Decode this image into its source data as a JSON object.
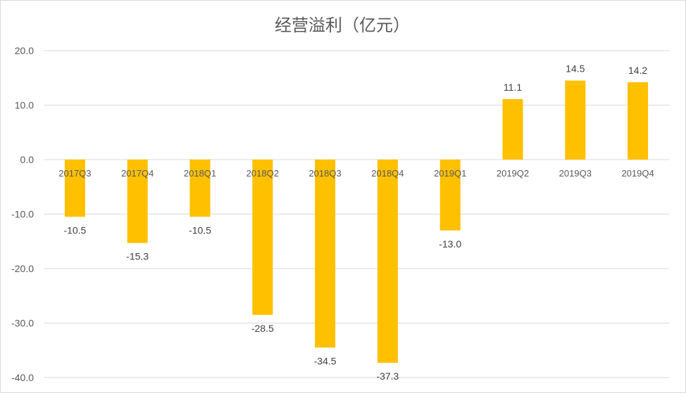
{
  "chart_data": {
    "type": "bar",
    "title": "经营溢利（亿元）",
    "categories": [
      "2017Q3",
      "2017Q4",
      "2018Q1",
      "2018Q2",
      "2018Q3",
      "2018Q4",
      "2019Q1",
      "2019Q2",
      "2019Q3",
      "2019Q4"
    ],
    "values": [
      -10.5,
      -15.3,
      -10.5,
      -28.5,
      -34.5,
      -37.3,
      -13.0,
      11.1,
      14.5,
      14.2
    ],
    "data_labels": [
      "-10.5",
      "-15.3",
      "-10.5",
      "-28.5",
      "-34.5",
      "-37.3",
      "-13.0",
      "11.1",
      "14.5",
      "14.2"
    ],
    "xlabel": "",
    "ylabel": "",
    "ylim": [
      -40,
      20
    ],
    "yticks": [
      "20.0",
      "10.0",
      "0.0",
      "-10.0",
      "-20.0",
      "-30.0",
      "-40.0"
    ],
    "grid": true,
    "colors": {
      "bar": "#FFC000",
      "grid": "#d9d9d9",
      "text": "#595959"
    }
  }
}
